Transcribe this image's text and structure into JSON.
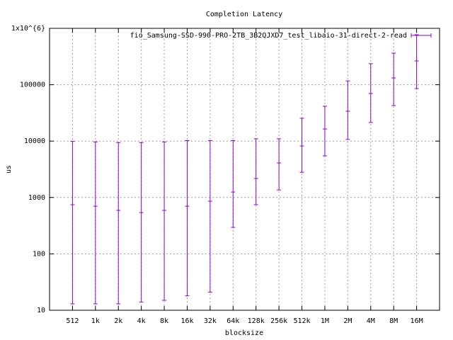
{
  "chart_data": {
    "type": "errorbar",
    "title": "Completion Latency",
    "x_label": "blocksize",
    "y_label": "us",
    "categories": [
      "512",
      "1k",
      "2k",
      "4k",
      "8k",
      "16k",
      "32k",
      "64k",
      "128k",
      "256k",
      "512k",
      "1M",
      "2M",
      "4M",
      "8M",
      "16M"
    ],
    "series": [
      {
        "name": "fio_Samsung-SSD-990-PRO-2TB_3B2QJXD7_test_libaio-31-direct-2-read",
        "color": "#9400d3",
        "values": [
          745,
          700,
          590,
          540,
          590,
          700,
          860,
          1250,
          2170,
          4100,
          8200,
          16400,
          33900,
          69800,
          132000,
          264000
        ],
        "min": [
          13,
          13,
          13,
          14,
          15,
          18,
          21,
          295,
          745,
          1360,
          2800,
          5480,
          10700,
          21400,
          42700,
          85500
        ],
        "max": [
          9900,
          9700,
          9400,
          9400,
          9700,
          10200,
          10200,
          10200,
          11000,
          11000,
          25400,
          41500,
          117000,
          236000,
          363000,
          771000
        ]
      }
    ],
    "log_y": true,
    "ylim": [
      10,
      1000000
    ],
    "yticks": [
      10,
      100,
      1000,
      10000,
      100000,
      {
        "value": 1000000,
        "label": "1x10^{6}"
      }
    ],
    "grid": true,
    "legend": "top-right"
  }
}
